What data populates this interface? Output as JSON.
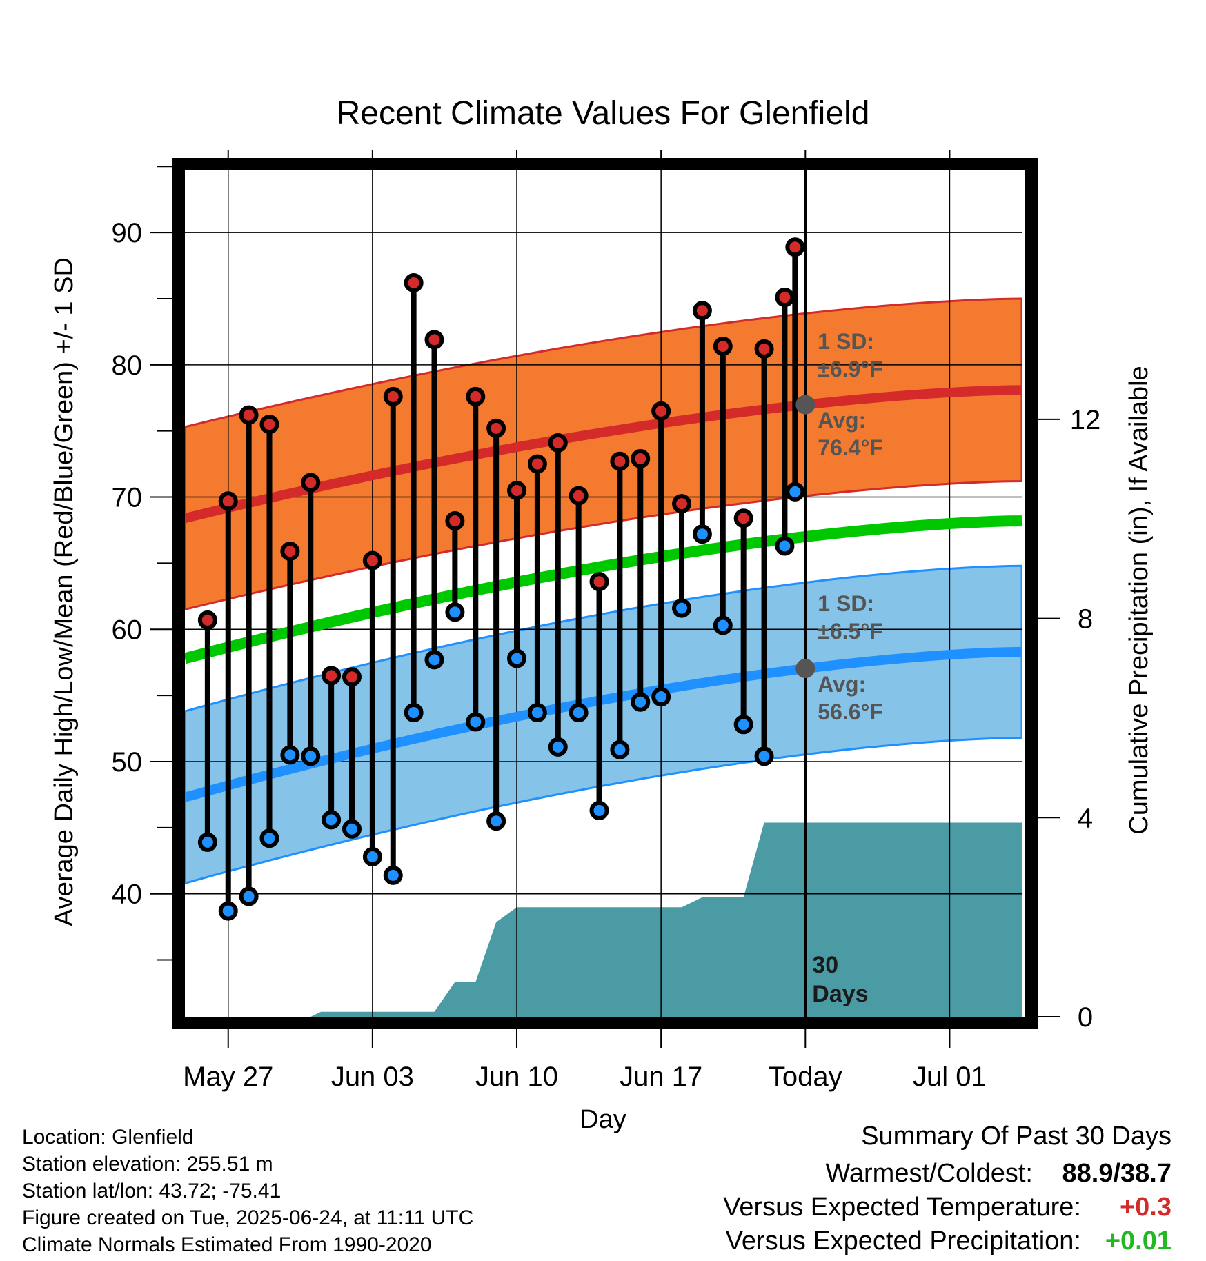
{
  "chart_data": {
    "type": "line",
    "title": "Recent Climate Values For Glenfield",
    "xlabel": "Day",
    "ylabel": "Average Daily High/Low/Mean (Red/Blue/Green) +/- 1 SD",
    "y2label": "Cumulative Precipitation (in), If Available",
    "x_tick_labels": [
      "May 27",
      "Jun 03",
      "Jun 10",
      "Jun 17",
      "Today",
      "Jul 01"
    ],
    "x_tick_days": [
      2,
      9,
      16,
      23,
      30,
      37
    ],
    "xlim": [
      -0.1,
      40.5
    ],
    "ylim": [
      30.7,
      94.7
    ],
    "yticks": [
      40,
      50,
      60,
      70,
      80,
      90
    ],
    "y2lim": [
      0,
      17
    ],
    "y2ticks": [
      0,
      4,
      8,
      12
    ],
    "today_day": 30,
    "normal_high_avg": {
      "start": 68.4,
      "end": 78.1
    },
    "normal_high_sd": 6.9,
    "normal_low_avg": {
      "start": 47.3,
      "end": 58.3
    },
    "normal_low_sd": 6.5,
    "normal_mean": {
      "start": 57.8,
      "end": 68.2
    },
    "observed": {
      "days": [
        1,
        2,
        3,
        4,
        5,
        6,
        7,
        8,
        9,
        10,
        11,
        12,
        13,
        14,
        15,
        16,
        17,
        18,
        19,
        20,
        21,
        22,
        23,
        24,
        25,
        26,
        27,
        28,
        29
      ],
      "high": [
        60.7,
        69.7,
        76.2,
        75.5,
        65.9,
        71.1,
        56.5,
        56.4,
        65.2,
        77.6,
        86.2,
        81.9,
        68.2,
        77.6,
        75.2,
        70.5,
        72.5,
        74.1,
        70.1,
        63.6,
        72.7,
        72.9,
        76.5,
        69.5,
        84.1,
        81.4,
        68.4,
        81.2,
        85.1
      ],
      "low": [
        43.9,
        38.7,
        39.8,
        44.2,
        50.5,
        50.4,
        45.6,
        44.9,
        42.8,
        41.4,
        53.7,
        57.7,
        61.3,
        53.0,
        45.5,
        57.8,
        53.7,
        51.1,
        53.7,
        46.3,
        50.9,
        54.5,
        54.9,
        61.6,
        67.2,
        60.3,
        52.8,
        50.4,
        66.3
      ]
    },
    "last_day": {
      "day": 29.5,
      "high": 88.9,
      "low": 70.4
    },
    "precip_cumulative": {
      "days": [
        -0.1,
        6,
        6.5,
        12,
        13,
        14,
        15,
        16,
        17,
        22,
        24,
        25,
        26,
        27,
        28,
        29,
        40.5
      ],
      "values": [
        0,
        0,
        0.1,
        0.1,
        0.7,
        0.7,
        1.9,
        2.2,
        2.2,
        2.2,
        2.2,
        2.4,
        2.4,
        2.4,
        3.9,
        3.9,
        3.9
      ]
    },
    "annotations": {
      "high_sd_label": "1 SD:",
      "high_sd_value": "±6.9°F",
      "high_avg_label": "Avg:",
      "high_avg_value": "76.4°F",
      "low_sd_label": "1 SD:",
      "low_sd_value": "±6.5°F",
      "low_avg_label": "Avg:",
      "low_avg_value": "56.6°F",
      "days_count": "30",
      "days_word": "Days"
    },
    "colors": {
      "high_band": "#f47a2f",
      "high_line": "#d42a2a",
      "low_band": "#85c3e8",
      "low_line": "#1e90ff",
      "mean_line": "#00c800",
      "precip": "#4a9ba4",
      "high_dot": "#d42a2a",
      "low_dot": "#1e90ff",
      "marker": "#555555"
    }
  },
  "info": {
    "location": "Location: Glenfield",
    "elevation": "Station elevation: 255.51 m",
    "latlon": "Station lat/lon: 43.72; -75.41",
    "created": "Figure created on Tue, 2025-06-24, at 11:11 UTC",
    "normals": "Climate Normals Estimated From 1990-2020"
  },
  "summary": {
    "title": "Summary Of Past 30 Days",
    "warm_cold_label": "Warmest/Coldest:",
    "warm_cold_value": "88.9/38.7",
    "temp_label": "Versus Expected Temperature:",
    "temp_value": "+0.3",
    "temp_color": "#d42a2a",
    "precip_label": "Versus Expected Precipitation:",
    "precip_value": "+0.01",
    "precip_color": "#22b822"
  }
}
